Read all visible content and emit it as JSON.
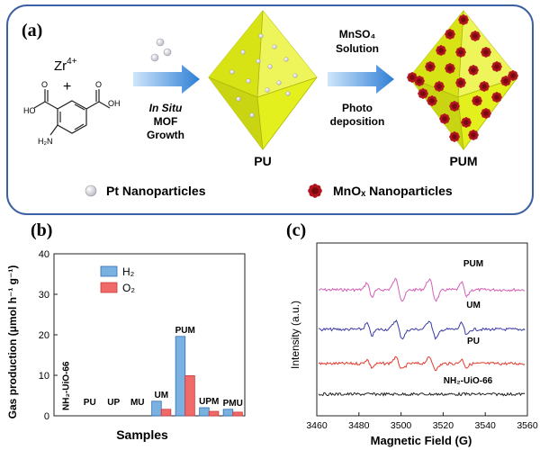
{
  "panel_a": {
    "label": "(a)",
    "reagent_metal": "Zr",
    "reagent_metal_charge": "4+",
    "plus": "+",
    "linker_labels": {
      "cooh_left": "HO",
      "cooh_left_o": "O",
      "cooh_right": "OH",
      "cooh_right_o": "O",
      "nh2": "H₂N"
    },
    "step1": {
      "line1": "In Situ",
      "line2": "MOF",
      "line3": "Growth"
    },
    "step2": {
      "line1": "MnSO₄",
      "line2": "Solution",
      "line3": "Photo",
      "line4": "deposition"
    },
    "product1": "PU",
    "product2": "PUM",
    "legend_pt": "Pt Nanoparticles",
    "legend_mn": "MnOₓ Nanoparticles",
    "colors": {
      "border": "#3d5fa3",
      "octahedron": "#e4ef1e",
      "octahedron_dark": "#c2cc10",
      "arrow": "#2f7fd6",
      "mnox": "#b0141e"
    }
  },
  "panel_b": {
    "label": "(b)",
    "chart_data": {
      "type": "bar",
      "ylabel": "Gas production (μmol h⁻¹ g⁻¹)",
      "xlabel": "Samples",
      "ylim": [
        0,
        40
      ],
      "yticks": [
        "0",
        "10",
        "20",
        "30",
        "40"
      ],
      "categories": [
        "NH₂-UiO-66",
        "PU",
        "UP",
        "MU",
        "UM",
        "PUM",
        "UPM",
        "PMU"
      ],
      "series": [
        {
          "name": "H₂",
          "color": "#7ab1e0",
          "values": [
            0,
            0,
            0,
            0,
            3.6,
            19.6,
            2.0,
            1.6
          ]
        },
        {
          "name": "O₂",
          "color": "#f06a6a",
          "values": [
            0,
            0,
            0,
            0,
            1.6,
            9.9,
            1.1,
            0.9
          ]
        }
      ]
    }
  },
  "panel_c": {
    "label": "(c)",
    "chart_data": {
      "type": "line",
      "title": "",
      "xlabel": "Magnetic Field (G)",
      "ylabel": "Intensity (a.u.)",
      "xlim": [
        3460,
        3560
      ],
      "xticks": [
        "3460",
        "3480",
        "3500",
        "3520",
        "3540",
        "3560"
      ],
      "peak_positions_G": [
        3485,
        3499,
        3515,
        3530
      ],
      "series": [
        {
          "name": "PUM",
          "color": "#d35fb8",
          "peak_strength": 1.0
        },
        {
          "name": "UM",
          "color": "#3a3aa8",
          "peak_strength": 0.85
        },
        {
          "name": "PU",
          "color": "#e23a2e",
          "peak_strength": 0.55
        },
        {
          "name": "NH₂-UiO-66",
          "color": "#222222",
          "peak_strength": 0.0
        }
      ]
    }
  }
}
